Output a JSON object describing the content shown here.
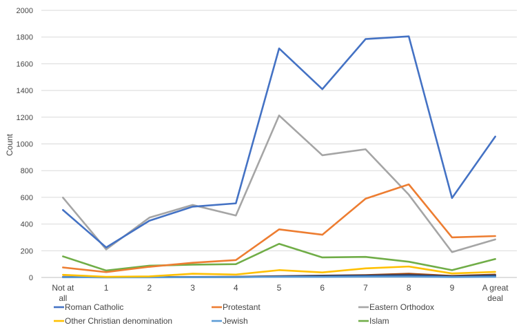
{
  "chart_data": {
    "type": "line",
    "title": "",
    "xlabel": "",
    "ylabel": "Count",
    "categories": [
      "Not at all",
      "1",
      "2",
      "3",
      "4",
      "5",
      "6",
      "7",
      "8",
      "9",
      "A great deal"
    ],
    "ylim": [
      0,
      2000
    ],
    "yticks": [
      0,
      200,
      400,
      600,
      800,
      1000,
      1200,
      1400,
      1600,
      1800,
      2000
    ],
    "grid": "horizontal",
    "legend": "bottom",
    "series": [
      {
        "name": "Roman Catholic",
        "color": "#4472C4",
        "values": [
          505,
          225,
          425,
          530,
          555,
          1715,
          1410,
          1785,
          1805,
          595,
          1055
        ]
      },
      {
        "name": "Protestant",
        "color": "#ED7D31",
        "values": [
          75,
          40,
          80,
          110,
          130,
          360,
          320,
          590,
          697,
          300,
          310
        ]
      },
      {
        "name": "Eastern Orthodox",
        "color": "#A5A5A5",
        "values": [
          598,
          210,
          448,
          543,
          464,
          1213,
          915,
          960,
          620,
          190,
          285
        ]
      },
      {
        "name": "Other Christian denomination",
        "color": "#FFC000",
        "values": [
          20,
          5,
          8,
          28,
          22,
          55,
          38,
          68,
          82,
          30,
          42
        ]
      },
      {
        "name": "Jewish",
        "color": "#5B9BD5",
        "values": [
          2,
          1,
          1,
          2,
          2,
          5,
          4,
          6,
          7,
          3,
          5
        ]
      },
      {
        "name": "Islam",
        "color": "#70AD47",
        "values": [
          158,
          52,
          88,
          96,
          100,
          252,
          150,
          154,
          118,
          55,
          138
        ]
      },
      {
        "name": "",
        "color": "#264478",
        "values": [
          3,
          2,
          2,
          3,
          4,
          8,
          12,
          14,
          18,
          8,
          15
        ]
      },
      {
        "name": "",
        "color": "#9E480E",
        "values": [
          5,
          2,
          3,
          4,
          5,
          10,
          14,
          18,
          28,
          12,
          22
        ]
      },
      {
        "name": "",
        "color": "#636363",
        "values": [
          2,
          1,
          2,
          3,
          3,
          6,
          8,
          10,
          12,
          5,
          9
        ]
      }
    ]
  }
}
